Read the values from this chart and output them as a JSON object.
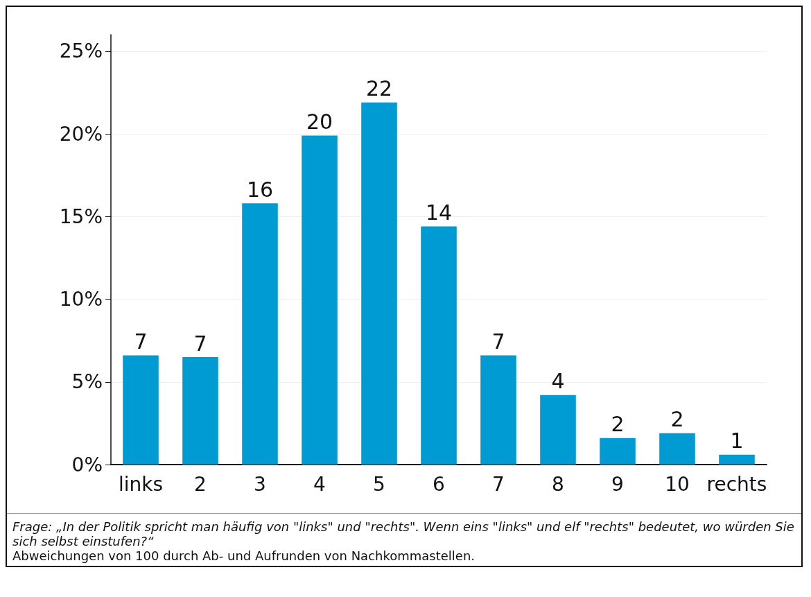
{
  "chart_data": {
    "type": "bar",
    "categories": [
      "links",
      "2",
      "3",
      "4",
      "5",
      "6",
      "7",
      "8",
      "9",
      "10",
      "rechts"
    ],
    "values": [
      6.6,
      6.5,
      15.8,
      19.9,
      21.9,
      14.4,
      6.6,
      4.2,
      1.6,
      1.9,
      0.6
    ],
    "value_labels": [
      "7",
      "7",
      "16",
      "20",
      "22",
      "14",
      "7",
      "4",
      "2",
      "2",
      "1"
    ],
    "color": "#009bd2",
    "ylim": [
      0,
      26
    ],
    "yticks": [
      {
        "value": 0,
        "label": "0%"
      },
      {
        "value": 5,
        "label": "5%"
      },
      {
        "value": 10,
        "label": "10%"
      },
      {
        "value": 15,
        "label": "15%"
      },
      {
        "value": 20,
        "label": "20%"
      },
      {
        "value": 25,
        "label": "25%"
      }
    ],
    "grid": "y",
    "annotations": [
      "Frage: „In der Politik spricht man häufig von \"links\" und \"rechts\". Wenn eins \"links\" und elf \"rechts\" bedeutet, wo würden Sie sich selbst einstufen?“",
      "Abweichungen von 100 durch Ab- und Aufrunden von Nachkommastellen."
    ]
  }
}
